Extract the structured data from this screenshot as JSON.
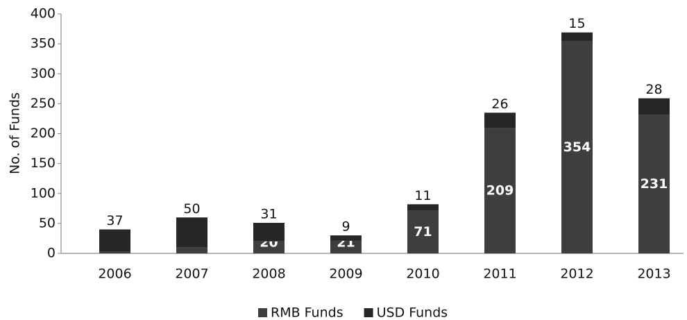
{
  "chart_data": {
    "type": "stacked_bar",
    "y_label": "No. of Funds",
    "categories": [
      "2006",
      "2007",
      "2008",
      "2009",
      "2010",
      "2011",
      "2012",
      "2013"
    ],
    "series": [
      {
        "name": "RMB Funds",
        "color": "#3e3e3e",
        "values": [
          3,
          10,
          20,
          21,
          71,
          209,
          354,
          231
        ]
      },
      {
        "name": "USD Funds",
        "color": "#262626",
        "values": [
          37,
          50,
          31,
          9,
          11,
          26,
          15,
          28
        ]
      }
    ],
    "ylim": [
      0,
      400
    ],
    "yticks": [
      0,
      50,
      100,
      150,
      200,
      250,
      300,
      350,
      400
    ],
    "legend": "bottom"
  }
}
